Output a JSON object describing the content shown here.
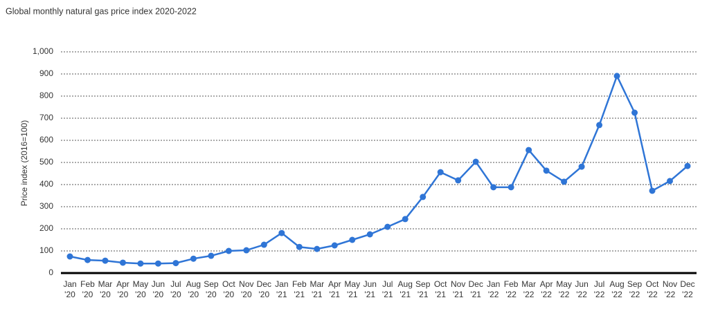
{
  "chart_data": {
    "type": "line",
    "title": "Global monthly natural gas price index 2020-2022",
    "y_label": "Price index (2016=100)",
    "categories": [
      "Jan '20",
      "Feb '20",
      "Mar '20",
      "Apr '20",
      "May '20",
      "Jun '20",
      "Jul '20",
      "Aug '20",
      "Sep '20",
      "Oct '20",
      "Nov '20",
      "Dec '20",
      "Jan '21",
      "Feb '21",
      "Mar '21",
      "Apr '21",
      "May '21",
      "Jun '21",
      "Jul '21",
      "Aug '21",
      "Sep '21",
      "Oct '21",
      "Nov '21",
      "Dec '21",
      "Jan '22",
      "Feb '22",
      "Mar '22",
      "Apr '22",
      "May '22",
      "Jun '22",
      "Jul '22",
      "Aug '22",
      "Sep '22",
      "Oct '22",
      "Nov '22",
      "Dec '22"
    ],
    "values": [
      75,
      59,
      56,
      47,
      43,
      43,
      45,
      65,
      78,
      100,
      103,
      128,
      181,
      118,
      109,
      125,
      150,
      175,
      209,
      244,
      344,
      456,
      419,
      503,
      388,
      388,
      556,
      463,
      413,
      481,
      669,
      891,
      725,
      372,
      416,
      484
    ],
    "color": "#2f75d6",
    "ylim": [
      0,
      1000
    ],
    "yticks": [
      0,
      100,
      200,
      300,
      400,
      500,
      600,
      700,
      800,
      900,
      {
        "value": 1000,
        "label": "1,000"
      }
    ],
    "grid": true
  }
}
